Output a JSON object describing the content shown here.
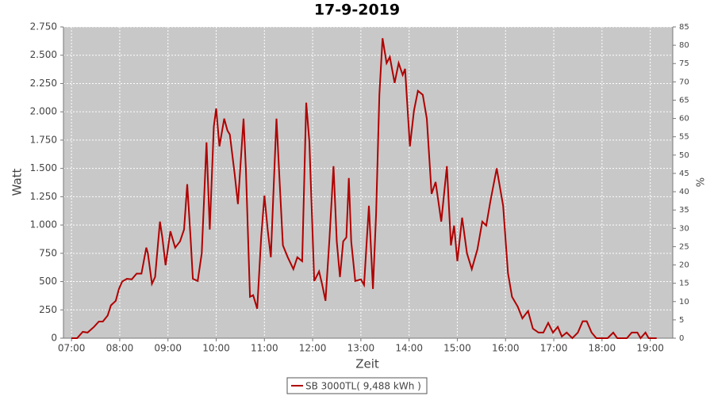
{
  "chart_data": {
    "type": "line",
    "title": "17-9-2019",
    "x_label": "Zeit",
    "y_label": "Watt",
    "y2_label": "%",
    "x": [
      "07:00",
      "07:07",
      "07:14",
      "07:20",
      "07:28",
      "07:34",
      "07:39",
      "07:45",
      "07:49",
      "07:55",
      "07:59",
      "08:03",
      "08:09",
      "08:15",
      "08:21",
      "08:27",
      "08:33",
      "08:35",
      "08:40",
      "08:44",
      "08:50",
      "08:53",
      "08:57",
      "09:03",
      "09:09",
      "09:15",
      "09:20",
      "09:24",
      "09:28",
      "09:31",
      "09:37",
      "09:42",
      "09:48",
      "09:52",
      "09:57",
      "10:00",
      "10:04",
      "10:10",
      "10:14",
      "10:17",
      "10:23",
      "10:27",
      "10:34",
      "10:37",
      "10:42",
      "10:46",
      "10:51",
      "10:56",
      "11:00",
      "11:04",
      "11:08",
      "11:11",
      "11:15",
      "11:19",
      "11:23",
      "11:29",
      "11:36",
      "11:41",
      "11:47",
      "11:52",
      "11:56",
      "12:02",
      "12:08",
      "12:12",
      "12:16",
      "12:21",
      "12:26",
      "12:30",
      "12:34",
      "12:38",
      "12:42",
      "12:45",
      "12:48",
      "12:53",
      "13:00",
      "13:04",
      "13:10",
      "13:15",
      "13:19",
      "13:23",
      "13:27",
      "13:32",
      "13:36",
      "13:42",
      "13:47",
      "13:52",
      "13:55",
      "14:01",
      "14:06",
      "14:11",
      "14:17",
      "14:22",
      "14:28",
      "14:33",
      "14:40",
      "14:47",
      "14:52",
      "14:56",
      "15:00",
      "15:06",
      "15:12",
      "15:18",
      "15:25",
      "15:31",
      "15:36",
      "15:41",
      "15:49",
      "15:57",
      "16:03",
      "16:08",
      "16:15",
      "16:21",
      "16:28",
      "16:34",
      "16:41",
      "16:47",
      "16:53",
      "16:59",
      "17:05",
      "17:10",
      "17:16",
      "17:23",
      "17:30",
      "17:36",
      "17:41",
      "17:47",
      "17:53",
      "18:07",
      "18:14",
      "18:19",
      "18:31",
      "18:37",
      "18:44",
      "18:48",
      "18:54",
      "18:58",
      "19:08"
    ],
    "series": [
      {
        "name": "SB 3000TL( 9,488 kWh )",
        "color": "#b00000",
        "values": [
          0,
          0,
          56,
          50,
          100,
          147,
          147,
          200,
          290,
          330,
          435,
          500,
          525,
          520,
          570,
          570,
          800,
          750,
          480,
          540,
          1030,
          890,
          645,
          945,
          800,
          855,
          960,
          1360,
          900,
          525,
          505,
          750,
          1730,
          960,
          1870,
          2030,
          1695,
          1940,
          1835,
          1800,
          1450,
          1185,
          1940,
          1485,
          365,
          380,
          260,
          890,
          1260,
          960,
          715,
          1240,
          1940,
          1380,
          820,
          715,
          610,
          715,
          680,
          2080,
          1730,
          505,
          590,
          470,
          330,
          890,
          1520,
          855,
          540,
          855,
          890,
          1415,
          855,
          505,
          520,
          470,
          1170,
          435,
          1100,
          2150,
          2650,
          2430,
          2485,
          2255,
          2430,
          2325,
          2380,
          1695,
          2010,
          2185,
          2150,
          1940,
          1275,
          1380,
          1030,
          1520,
          820,
          995,
          680,
          1065,
          750,
          610,
          785,
          1030,
          995,
          1205,
          1500,
          1170,
          575,
          365,
          280,
          175,
          240,
          85,
          50,
          50,
          135,
          50,
          100,
          15,
          50,
          0,
          50,
          150,
          150,
          50,
          0,
          0,
          50,
          0,
          0,
          50,
          50,
          0,
          50,
          0,
          0
        ]
      }
    ],
    "xlim": [
      "06:50",
      "19:28"
    ],
    "xticks": [
      "07:00",
      "08:00",
      "09:00",
      "10:00",
      "11:00",
      "12:00",
      "13:00",
      "14:00",
      "15:00",
      "16:00",
      "17:00",
      "18:00",
      "19:00"
    ],
    "ylim": [
      0,
      2750
    ],
    "yticks": [
      0,
      250,
      500,
      750,
      {
        "value": 1000,
        "label": "1.000"
      },
      {
        "value": 1250,
        "label": "1.250"
      },
      {
        "value": 1500,
        "label": "1.500"
      },
      {
        "value": 1750,
        "label": "1.750"
      },
      {
        "value": 2000,
        "label": "2.000"
      },
      {
        "value": 2250,
        "label": "2.250"
      },
      {
        "value": 2500,
        "label": "2.500"
      },
      {
        "value": 2750,
        "label": "2.750"
      }
    ],
    "y2lim": [
      0,
      85
    ],
    "y2ticks": [
      0,
      5,
      10,
      15,
      20,
      25,
      30,
      35,
      40,
      45,
      50,
      55,
      60,
      65,
      70,
      75,
      80,
      85
    ],
    "grid": true
  }
}
